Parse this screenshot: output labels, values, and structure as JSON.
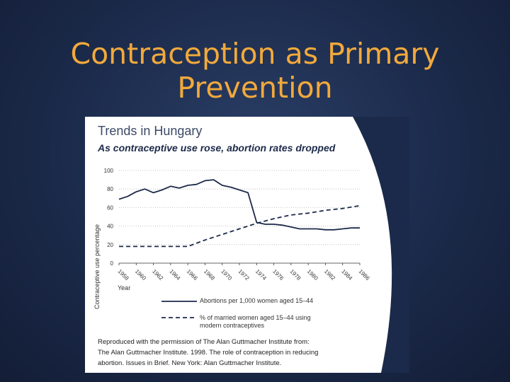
{
  "slide": {
    "title_line1": "Contraception as Primary",
    "title_line2": "Prevention"
  },
  "figure": {
    "title": "Trends in Hungary",
    "subtitle": "As contraceptive use rose, abortion rates dropped",
    "credit_lines": [
      "Reproduced with the permission of  The Alan Guttmacher Institute from:",
      "The Alan Guttmacher Institute. 1998. The role of contraception in reducing",
      "abortion. Issues in Brief. New York: Alan Guttmacher Institute."
    ],
    "colors": {
      "background": "#ffffff",
      "wedge": "#1b2a4a",
      "title": "#f2a93b"
    }
  },
  "chart_data": {
    "type": "line",
    "title": "Trends in Hungary",
    "subtitle": "As contraceptive use rose, abortion rates dropped",
    "xlabel": "Year",
    "ylabel": "Contraceptive use percentage",
    "ylim": [
      0,
      100
    ],
    "yticks": [
      0,
      20,
      40,
      60,
      80,
      100
    ],
    "xticks": [
      "1958",
      "1960",
      "1962",
      "1964",
      "1966",
      "1968",
      "1970",
      "1972",
      "1974",
      "1976",
      "1978",
      "1980",
      "1982",
      "1984",
      "1986"
    ],
    "grid": true,
    "legend_placement": "bottom",
    "series": [
      {
        "name": "Abortions per 1,000 women aged 15–44",
        "style": "solid",
        "x": [
          1958,
          1959,
          1960,
          1961,
          1962,
          1963,
          1964,
          1965,
          1966,
          1967,
          1968,
          1969,
          1970,
          1971,
          1972,
          1973,
          1974,
          1975,
          1976,
          1977,
          1978,
          1979,
          1980,
          1981,
          1982,
          1983,
          1984,
          1985,
          1986
        ],
        "y": [
          69,
          72,
          77,
          80,
          76,
          79,
          83,
          81,
          84,
          85,
          89,
          90,
          84,
          82,
          79,
          76,
          44,
          42,
          42,
          41,
          39,
          37,
          37,
          37,
          36,
          36,
          37,
          38,
          38
        ]
      },
      {
        "name": "% of married women aged 15–44 using modern contraceptives",
        "style": "dashed",
        "x": [
          1958,
          1960,
          1962,
          1964,
          1966,
          1968,
          1970,
          1972,
          1974,
          1976,
          1978,
          1980,
          1982,
          1984,
          1986
        ],
        "y": [
          18,
          18,
          18,
          18,
          18,
          25,
          31,
          37,
          43,
          48,
          52,
          54,
          57,
          59,
          62
        ]
      }
    ]
  }
}
